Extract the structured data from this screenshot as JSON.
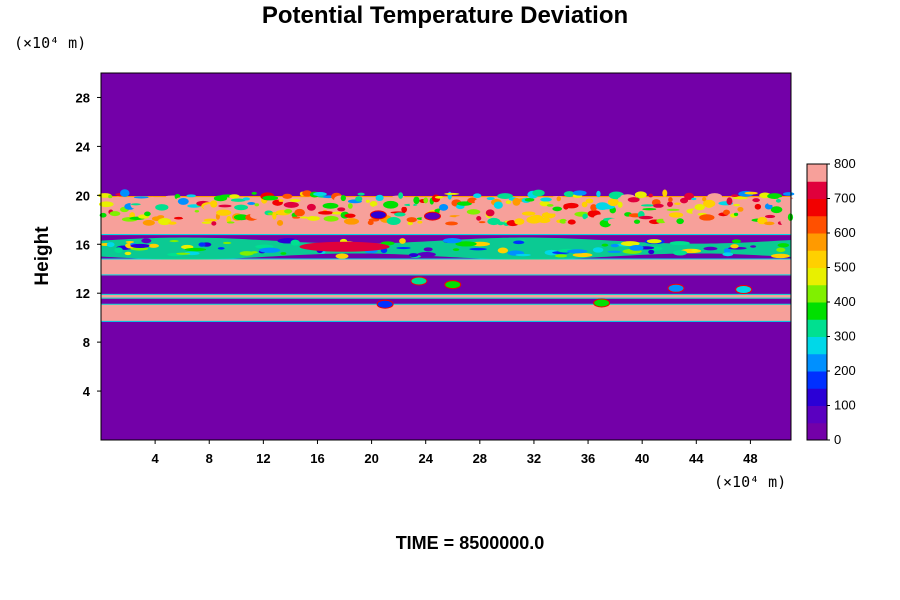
{
  "chart_data": {
    "type": "heatmap",
    "title": "Potential Temperature Deviation",
    "ylabel": "Height",
    "x_unit": "(×10⁴ m)",
    "y_unit": "(×10⁴ m)",
    "xlim": [
      0,
      51
    ],
    "ylim": [
      0,
      30
    ],
    "x_ticks": [
      4,
      8,
      12,
      16,
      20,
      24,
      28,
      32,
      36,
      40,
      44,
      48
    ],
    "y_ticks": [
      4,
      8,
      12,
      16,
      20,
      24,
      28
    ],
    "background_value": 0,
    "bands": [
      {
        "y0": 9.7,
        "y1": 11.1,
        "value": 800
      },
      {
        "y0": 11.1,
        "y1": 11.6,
        "value": 0
      },
      {
        "y0": 11.6,
        "y1": 11.9,
        "value": 800
      },
      {
        "y0": 11.9,
        "y1": 13.5,
        "value": 0
      },
      {
        "y0": 13.5,
        "y1": 14.8,
        "value": 800
      },
      {
        "y0": 14.8,
        "y1": 16.8,
        "value": 0
      },
      {
        "y0": 16.8,
        "y1": 19.9,
        "value": 800
      }
    ],
    "features": [
      {
        "type": "turbulent_edge",
        "y": 18.3,
        "x0": 0,
        "x1": 51,
        "value": 650
      },
      {
        "type": "turbulent_edge",
        "y": 19.6,
        "x0": 0,
        "x1": 51,
        "value": 550
      },
      {
        "type": "wave_layer",
        "x0": 0,
        "x1": 51,
        "y0": 15.0,
        "y1": 16.3,
        "value": 300
      },
      {
        "type": "bump",
        "x": 18,
        "y": 15.8,
        "value": 750
      },
      {
        "type": "eddy",
        "x": 20.5,
        "y": 18.4,
        "value": 100
      },
      {
        "type": "eddy",
        "x": 24.5,
        "y": 18.3,
        "value": 50
      },
      {
        "type": "eddy",
        "x": 37,
        "y": 11.2,
        "value": 350
      },
      {
        "type": "eddy",
        "x": 42.5,
        "y": 12.4,
        "value": 200
      },
      {
        "type": "eddy",
        "x": 47.5,
        "y": 12.3,
        "value": 250
      },
      {
        "type": "eddy",
        "x": 23.5,
        "y": 13.0,
        "value": 300
      },
      {
        "type": "eddy",
        "x": 26,
        "y": 12.7,
        "value": 350
      },
      {
        "type": "eddy",
        "x": 21,
        "y": 11.1,
        "value": 150
      }
    ],
    "colorbar": {
      "min": 0,
      "max": 800,
      "tick_labels": [
        "0",
        "100",
        "200",
        "300",
        "400",
        "500",
        "600",
        "700",
        "800"
      ]
    },
    "colors": {
      "background": "#7300a8",
      "high": "#f7a09a",
      "scale": [
        "#7300a8",
        "#5a00c0",
        "#2b00d6",
        "#0030ff",
        "#0090ff",
        "#00d8e8",
        "#00e090",
        "#00e000",
        "#80f000",
        "#e8f000",
        "#ffd000",
        "#ff9a00",
        "#ff5000",
        "#f20000",
        "#e0003c",
        "#f7a09a"
      ]
    }
  },
  "footer": "TIME = 8500000.0"
}
